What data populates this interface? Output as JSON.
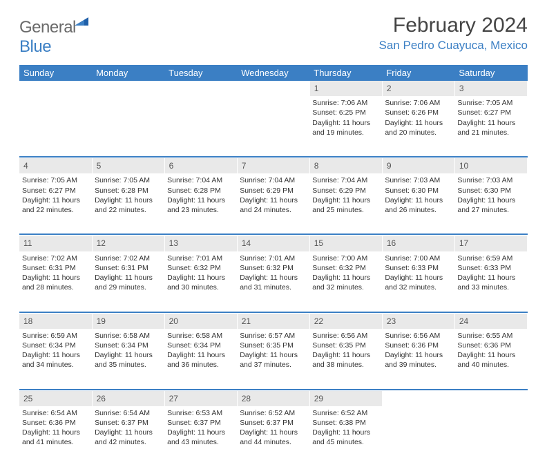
{
  "brand": {
    "name_part1": "General",
    "name_part2": "Blue"
  },
  "title": "February 2024",
  "location": "San Pedro Cuayuca, Mexico",
  "colors": {
    "header_bg": "#3b7fc4",
    "daynum_bg": "#e9e9e9",
    "text": "#333333",
    "brand_gray": "#6a6a6a",
    "brand_blue": "#3b7fc4"
  },
  "day_headers": [
    "Sunday",
    "Monday",
    "Tuesday",
    "Wednesday",
    "Thursday",
    "Friday",
    "Saturday"
  ],
  "weeks": [
    {
      "nums": [
        "",
        "",
        "",
        "",
        "1",
        "2",
        "3"
      ],
      "cells": [
        null,
        null,
        null,
        null,
        {
          "sunrise": "Sunrise: 7:06 AM",
          "sunset": "Sunset: 6:25 PM",
          "daylight1": "Daylight: 11 hours",
          "daylight2": "and 19 minutes."
        },
        {
          "sunrise": "Sunrise: 7:06 AM",
          "sunset": "Sunset: 6:26 PM",
          "daylight1": "Daylight: 11 hours",
          "daylight2": "and 20 minutes."
        },
        {
          "sunrise": "Sunrise: 7:05 AM",
          "sunset": "Sunset: 6:27 PM",
          "daylight1": "Daylight: 11 hours",
          "daylight2": "and 21 minutes."
        }
      ]
    },
    {
      "nums": [
        "4",
        "5",
        "6",
        "7",
        "8",
        "9",
        "10"
      ],
      "cells": [
        {
          "sunrise": "Sunrise: 7:05 AM",
          "sunset": "Sunset: 6:27 PM",
          "daylight1": "Daylight: 11 hours",
          "daylight2": "and 22 minutes."
        },
        {
          "sunrise": "Sunrise: 7:05 AM",
          "sunset": "Sunset: 6:28 PM",
          "daylight1": "Daylight: 11 hours",
          "daylight2": "and 22 minutes."
        },
        {
          "sunrise": "Sunrise: 7:04 AM",
          "sunset": "Sunset: 6:28 PM",
          "daylight1": "Daylight: 11 hours",
          "daylight2": "and 23 minutes."
        },
        {
          "sunrise": "Sunrise: 7:04 AM",
          "sunset": "Sunset: 6:29 PM",
          "daylight1": "Daylight: 11 hours",
          "daylight2": "and 24 minutes."
        },
        {
          "sunrise": "Sunrise: 7:04 AM",
          "sunset": "Sunset: 6:29 PM",
          "daylight1": "Daylight: 11 hours",
          "daylight2": "and 25 minutes."
        },
        {
          "sunrise": "Sunrise: 7:03 AM",
          "sunset": "Sunset: 6:30 PM",
          "daylight1": "Daylight: 11 hours",
          "daylight2": "and 26 minutes."
        },
        {
          "sunrise": "Sunrise: 7:03 AM",
          "sunset": "Sunset: 6:30 PM",
          "daylight1": "Daylight: 11 hours",
          "daylight2": "and 27 minutes."
        }
      ]
    },
    {
      "nums": [
        "11",
        "12",
        "13",
        "14",
        "15",
        "16",
        "17"
      ],
      "cells": [
        {
          "sunrise": "Sunrise: 7:02 AM",
          "sunset": "Sunset: 6:31 PM",
          "daylight1": "Daylight: 11 hours",
          "daylight2": "and 28 minutes."
        },
        {
          "sunrise": "Sunrise: 7:02 AM",
          "sunset": "Sunset: 6:31 PM",
          "daylight1": "Daylight: 11 hours",
          "daylight2": "and 29 minutes."
        },
        {
          "sunrise": "Sunrise: 7:01 AM",
          "sunset": "Sunset: 6:32 PM",
          "daylight1": "Daylight: 11 hours",
          "daylight2": "and 30 minutes."
        },
        {
          "sunrise": "Sunrise: 7:01 AM",
          "sunset": "Sunset: 6:32 PM",
          "daylight1": "Daylight: 11 hours",
          "daylight2": "and 31 minutes."
        },
        {
          "sunrise": "Sunrise: 7:00 AM",
          "sunset": "Sunset: 6:32 PM",
          "daylight1": "Daylight: 11 hours",
          "daylight2": "and 32 minutes."
        },
        {
          "sunrise": "Sunrise: 7:00 AM",
          "sunset": "Sunset: 6:33 PM",
          "daylight1": "Daylight: 11 hours",
          "daylight2": "and 32 minutes."
        },
        {
          "sunrise": "Sunrise: 6:59 AM",
          "sunset": "Sunset: 6:33 PM",
          "daylight1": "Daylight: 11 hours",
          "daylight2": "and 33 minutes."
        }
      ]
    },
    {
      "nums": [
        "18",
        "19",
        "20",
        "21",
        "22",
        "23",
        "24"
      ],
      "cells": [
        {
          "sunrise": "Sunrise: 6:59 AM",
          "sunset": "Sunset: 6:34 PM",
          "daylight1": "Daylight: 11 hours",
          "daylight2": "and 34 minutes."
        },
        {
          "sunrise": "Sunrise: 6:58 AM",
          "sunset": "Sunset: 6:34 PM",
          "daylight1": "Daylight: 11 hours",
          "daylight2": "and 35 minutes."
        },
        {
          "sunrise": "Sunrise: 6:58 AM",
          "sunset": "Sunset: 6:34 PM",
          "daylight1": "Daylight: 11 hours",
          "daylight2": "and 36 minutes."
        },
        {
          "sunrise": "Sunrise: 6:57 AM",
          "sunset": "Sunset: 6:35 PM",
          "daylight1": "Daylight: 11 hours",
          "daylight2": "and 37 minutes."
        },
        {
          "sunrise": "Sunrise: 6:56 AM",
          "sunset": "Sunset: 6:35 PM",
          "daylight1": "Daylight: 11 hours",
          "daylight2": "and 38 minutes."
        },
        {
          "sunrise": "Sunrise: 6:56 AM",
          "sunset": "Sunset: 6:36 PM",
          "daylight1": "Daylight: 11 hours",
          "daylight2": "and 39 minutes."
        },
        {
          "sunrise": "Sunrise: 6:55 AM",
          "sunset": "Sunset: 6:36 PM",
          "daylight1": "Daylight: 11 hours",
          "daylight2": "and 40 minutes."
        }
      ]
    },
    {
      "nums": [
        "25",
        "26",
        "27",
        "28",
        "29",
        "",
        ""
      ],
      "cells": [
        {
          "sunrise": "Sunrise: 6:54 AM",
          "sunset": "Sunset: 6:36 PM",
          "daylight1": "Daylight: 11 hours",
          "daylight2": "and 41 minutes."
        },
        {
          "sunrise": "Sunrise: 6:54 AM",
          "sunset": "Sunset: 6:37 PM",
          "daylight1": "Daylight: 11 hours",
          "daylight2": "and 42 minutes."
        },
        {
          "sunrise": "Sunrise: 6:53 AM",
          "sunset": "Sunset: 6:37 PM",
          "daylight1": "Daylight: 11 hours",
          "daylight2": "and 43 minutes."
        },
        {
          "sunrise": "Sunrise: 6:52 AM",
          "sunset": "Sunset: 6:37 PM",
          "daylight1": "Daylight: 11 hours",
          "daylight2": "and 44 minutes."
        },
        {
          "sunrise": "Sunrise: 6:52 AM",
          "sunset": "Sunset: 6:38 PM",
          "daylight1": "Daylight: 11 hours",
          "daylight2": "and 45 minutes."
        },
        null,
        null
      ]
    }
  ]
}
